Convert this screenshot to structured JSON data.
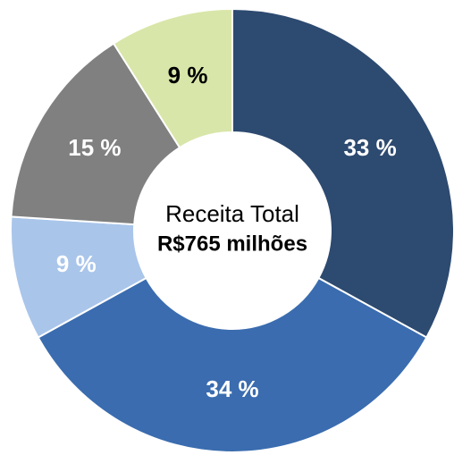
{
  "chart_data": {
    "type": "donut",
    "categories": [
      null,
      null,
      null,
      null,
      null
    ],
    "values": [
      33,
      34,
      9,
      15,
      9
    ],
    "value_labels": [
      "33 %",
      "34 %",
      "9 %",
      "15 %",
      "9 %"
    ],
    "colors": [
      "#2d4a70",
      "#3a6caf",
      "#a9c5ea",
      "#808080",
      "#d8e6a9"
    ],
    "label_colors": [
      "#ffffff",
      "#ffffff",
      "#ffffff",
      "#ffffff",
      "#000000"
    ],
    "annotations": [
      "Receita Total",
      "R$765 milhões"
    ]
  }
}
